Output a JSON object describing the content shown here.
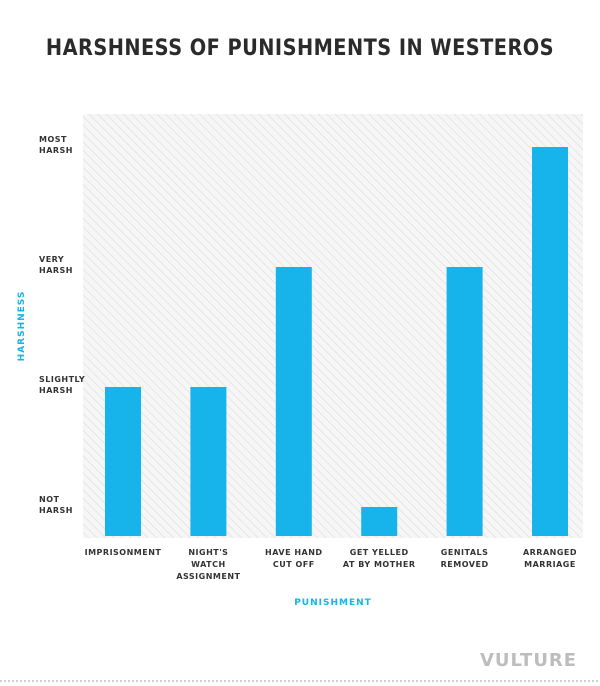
{
  "chart_data": {
    "type": "bar",
    "title": "HARSHNESS OF PUNISHMENTS IN WESTEROS",
    "xlabel": "PUNISHMENT",
    "ylabel": "HARSHNESS",
    "categories": [
      [
        "IMPRISONMENT"
      ],
      [
        "NIGHT'S",
        "WATCH",
        "ASSIGNMENT"
      ],
      [
        "HAVE HAND",
        "CUT OFF"
      ],
      [
        "GET YELLED",
        "AT BY MOTHER"
      ],
      [
        "GENITALS",
        "REMOVED"
      ],
      [
        "ARRANGED",
        "MARRIAGE"
      ]
    ],
    "values": [
      1,
      1,
      2,
      0,
      2,
      3
    ],
    "y_ticks": [
      {
        "value": 0,
        "lines": [
          "NOT",
          "HARSH"
        ]
      },
      {
        "value": 1,
        "lines": [
          "SLIGHTLY",
          "HARSH"
        ]
      },
      {
        "value": 2,
        "lines": [
          "VERY",
          "HARSH"
        ]
      },
      {
        "value": 3,
        "lines": [
          "MOST",
          "HARSH"
        ]
      }
    ],
    "ylim": [
      0,
      3
    ],
    "grid": false,
    "colors": {
      "bar": "#16b4ea",
      "accent_label": "#16b4ea",
      "text": "#333333",
      "hatch_bg": "#f6f6f6",
      "hatch_line": "#dcdcdc"
    }
  },
  "watermark": "VULTURE"
}
